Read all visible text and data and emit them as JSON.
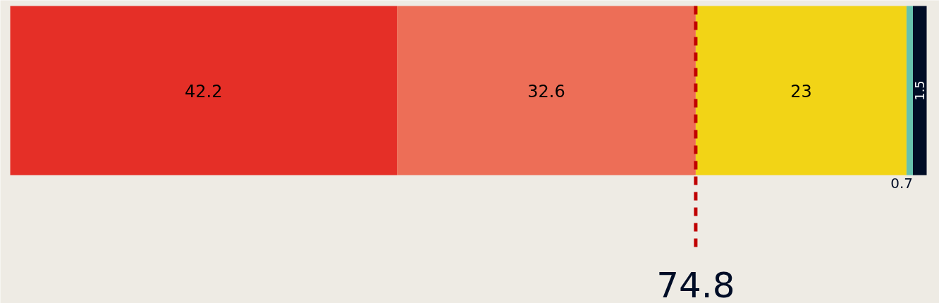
{
  "chart_data": {
    "type": "bar",
    "orientation": "horizontal",
    "stacked": true,
    "categories": [
      null
    ],
    "series": [
      {
        "color": "#e52f27",
        "values": [
          42.2
        ]
      },
      {
        "color": "#ed6e57",
        "values": [
          32.6
        ]
      },
      {
        "color": "#f2d416",
        "values": [
          23
        ]
      },
      {
        "color": "#66c2ae",
        "values": [
          0.7
        ]
      },
      {
        "color": "#000d26",
        "values": [
          1.5
        ]
      }
    ],
    "data_labels": true,
    "ref_lines": [
      {
        "axis": "x",
        "value": 74.8,
        "label": "74.8",
        "color": "#c00000",
        "line_style": "dashed"
      }
    ],
    "grid": false
  }
}
